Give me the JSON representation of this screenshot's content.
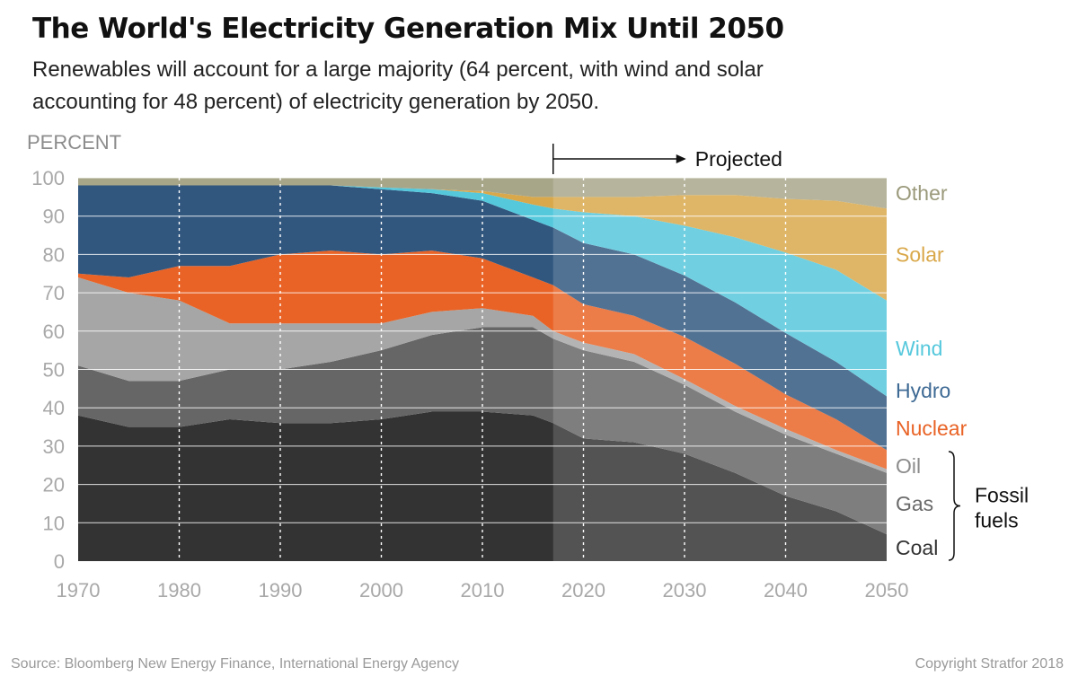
{
  "header": {
    "title": "The World's Electricity Generation Mix Until 2050",
    "subtitle": "Renewables will account for a large majority (64 percent, with wind and solar accounting for 48 percent) of electricity generation by 2050."
  },
  "footer": {
    "source": "Source: Bloomberg New Energy Finance, International Energy Agency",
    "copyright": "Copyright Stratfor 2018"
  },
  "chart_data": {
    "type": "area",
    "stacked": true,
    "ylabel": "PERCENT",
    "ylim": [
      0,
      100
    ],
    "yticks": [
      0,
      10,
      20,
      30,
      40,
      50,
      60,
      70,
      80,
      90,
      100
    ],
    "xlim": [
      1970,
      2050
    ],
    "xticks": [
      1970,
      1980,
      1990,
      2000,
      2010,
      2020,
      2030,
      2040,
      2050
    ],
    "projection_start": 2017,
    "projected_label": "Projected",
    "bracket_label": "Fossil fuels",
    "bracket_label_lines": [
      "Fossil",
      "fuels"
    ],
    "grid": "vertical dotted lines at decades",
    "x": [
      1970,
      1975,
      1980,
      1985,
      1990,
      1995,
      2000,
      2005,
      2010,
      2015,
      2017,
      2020,
      2025,
      2030,
      2035,
      2040,
      2045,
      2050
    ],
    "series": [
      {
        "name": "Coal",
        "color": "#333333",
        "values": [
          38,
          35,
          35,
          37,
          36,
          36,
          37,
          39,
          39,
          38,
          36,
          32,
          31,
          28,
          23,
          17,
          13,
          7
        ]
      },
      {
        "name": "Gas",
        "color": "#666666",
        "values": [
          13,
          12,
          12,
          13,
          14,
          16,
          18,
          20,
          22,
          23,
          22,
          23,
          21,
          18,
          16,
          16,
          15,
          16
        ]
      },
      {
        "name": "Oil",
        "color": "#a6a6a6",
        "values": [
          23,
          23,
          21,
          12,
          12,
          10,
          7,
          6,
          5,
          3,
          2,
          2,
          2,
          1.5,
          1.5,
          1.5,
          1,
          1
        ]
      },
      {
        "name": "Nuclear",
        "color": "#e96326",
        "values": [
          1,
          4,
          9,
          15,
          18,
          19,
          18,
          16,
          13,
          10,
          12,
          10,
          10,
          11,
          11,
          9,
          8,
          5
        ]
      },
      {
        "name": "Hydro",
        "color": "#31577f",
        "values": [
          23,
          24,
          21,
          21,
          18,
          17,
          17,
          15,
          15,
          15,
          15,
          16,
          16,
          16,
          16,
          16,
          15,
          14
        ]
      },
      {
        "name": "Wind",
        "color": "#55c8dc",
        "values": [
          0,
          0,
          0,
          0,
          0,
          0,
          0.5,
          1,
          2,
          4,
          5,
          8,
          10,
          13,
          17,
          21,
          24,
          25
        ]
      },
      {
        "name": "Solar",
        "color": "#d9a84a",
        "values": [
          0,
          0,
          0,
          0,
          0,
          0,
          0,
          0,
          0.5,
          2,
          3,
          4,
          5,
          8,
          11,
          14,
          18,
          24
        ]
      },
      {
        "name": "Other",
        "color": "#a8a689",
        "values": [
          2,
          2,
          2,
          2,
          2,
          2,
          2.5,
          3,
          3.5,
          5,
          5,
          5,
          5,
          4.5,
          4.5,
          5.5,
          6,
          8
        ]
      }
    ],
    "label_colors": {
      "Other": "#9b9a7c",
      "Solar": "#d9a84a",
      "Wind": "#55c8dc",
      "Hydro": "#3e6a94",
      "Nuclear": "#e96326",
      "Oil": "#8c8c8c",
      "Gas": "#6b6b6b",
      "Coal": "#333333"
    }
  }
}
